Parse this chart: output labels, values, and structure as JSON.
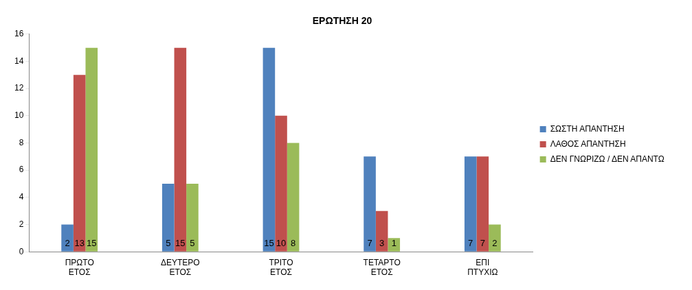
{
  "chart_data": {
    "type": "bar",
    "title": "ΕΡΩΤΗΣΗ 20",
    "categories": [
      "ΠΡΩΤΟ ΕΤΟΣ",
      "ΔΕΥΤΕΡΟ ΕΤΟΣ",
      "ΤΡΙΤΟ ΕΤΟΣ",
      "ΤΕΤΑΡΤΟ ΕΤΟΣ",
      "ΕΠΙ ΠΤΥΧΙΩ"
    ],
    "series": [
      {
        "name": "ΣΩΣΤΗ ΑΠΑΝΤΗΣΗ",
        "color": "#4f81bd",
        "values": [
          2,
          5,
          15,
          7,
          7
        ]
      },
      {
        "name": "ΛΑΘΟΣ ΑΠΑΝΤΗΣΗ",
        "color": "#c0504d",
        "values": [
          13,
          15,
          10,
          3,
          7
        ]
      },
      {
        "name": "ΔΕΝ ΓΝΩΡΙΖΩ / ΔΕΝ ΑΠΑΝΤΩ",
        "color": "#9bbb59",
        "values": [
          15,
          5,
          8,
          1,
          2
        ]
      }
    ],
    "ylim": [
      0,
      16
    ],
    "yticks": [
      0,
      2,
      4,
      6,
      8,
      10,
      12,
      14,
      16
    ],
    "grid": false,
    "legend": "right",
    "data_labels": true
  }
}
